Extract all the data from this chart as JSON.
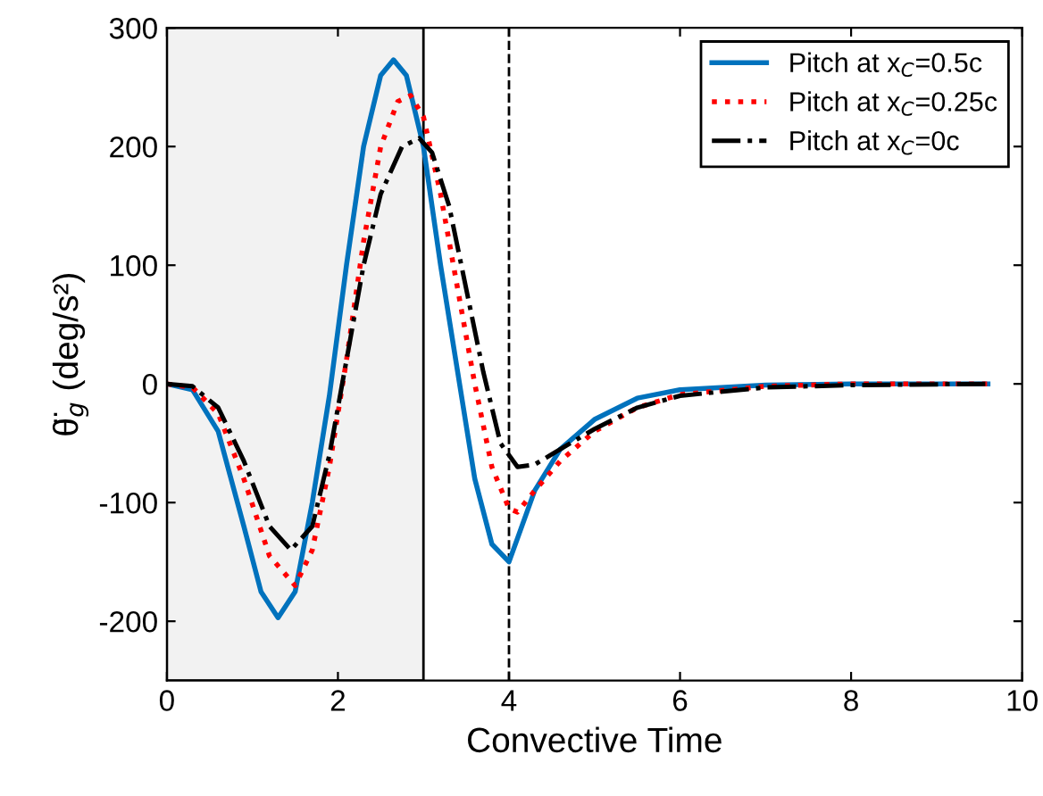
{
  "chart_data": {
    "type": "line",
    "xlabel": "Convective Time",
    "ylabel": "θ̈$_{g}$ (deg/s²)",
    "xlim": [
      0,
      10
    ],
    "xticks": [
      0,
      2,
      4,
      6,
      8,
      10
    ],
    "ylim": [
      -250,
      300
    ],
    "yticks": [
      -200,
      -100,
      0,
      100,
      200,
      300
    ],
    "grid": false,
    "legend": "top right",
    "marker": "none",
    "bands": [
      {
        "axis": "x",
        "from": 0,
        "to": 3,
        "label": null,
        "color": "#f2f2f2"
      }
    ],
    "ref_lines": [
      {
        "axis": "x",
        "value": 4,
        "label": null,
        "color": "#000000",
        "line_style": "dashed"
      }
    ],
    "series": [
      {
        "name": "Pitch at x$_{C}$=0.5c",
        "color": "#0072bd",
        "line_style": "solid",
        "x": [
          0,
          0.3,
          0.6,
          0.9,
          1.1,
          1.3,
          1.5,
          1.7,
          1.9,
          2.1,
          2.3,
          2.5,
          2.65,
          2.8,
          3.0,
          3.2,
          3.4,
          3.6,
          3.8,
          4.0,
          4.1,
          4.3,
          4.6,
          5.0,
          5.5,
          6.0,
          7,
          8,
          9.6
        ],
        "values": [
          0,
          -5,
          -40,
          -120,
          -175,
          -197,
          -175,
          -100,
          -10,
          100,
          200,
          260,
          273,
          260,
          200,
          100,
          10,
          -80,
          -135,
          -150,
          -130,
          -90,
          -55,
          -30,
          -12,
          -5,
          -1,
          0,
          0
        ]
      },
      {
        "name": "Pitch at x$_{C}$=0.25c",
        "color": "#ff0000",
        "line_style": "dotted",
        "x": [
          0,
          0.3,
          0.6,
          0.9,
          1.2,
          1.5,
          1.7,
          1.9,
          2.1,
          2.3,
          2.5,
          2.7,
          2.85,
          3.0,
          3.2,
          3.4,
          3.6,
          3.8,
          4.0,
          4.1,
          4.3,
          4.6,
          5.0,
          5.5,
          6,
          7,
          8,
          9.6
        ],
        "values": [
          0,
          -3,
          -25,
          -80,
          -145,
          -170,
          -140,
          -70,
          20,
          120,
          200,
          238,
          243,
          225,
          160,
          80,
          0,
          -70,
          -105,
          -108,
          -90,
          -65,
          -40,
          -20,
          -9,
          -2,
          0,
          0
        ]
      },
      {
        "name": "Pitch at x$_{C}$=0c",
        "color": "#000000",
        "line_style": "dashdot",
        "x": [
          0,
          0.3,
          0.6,
          0.9,
          1.2,
          1.45,
          1.7,
          1.9,
          2.1,
          2.3,
          2.5,
          2.75,
          2.95,
          3.1,
          3.3,
          3.5,
          3.7,
          3.9,
          4.1,
          4.3,
          4.6,
          5.0,
          5.5,
          6,
          7,
          8,
          9.6
        ],
        "values": [
          0,
          -2,
          -20,
          -65,
          -120,
          -140,
          -120,
          -60,
          20,
          100,
          160,
          200,
          207,
          195,
          150,
          80,
          10,
          -50,
          -70,
          -68,
          -55,
          -38,
          -20,
          -10,
          -3,
          -1,
          0
        ]
      }
    ]
  }
}
